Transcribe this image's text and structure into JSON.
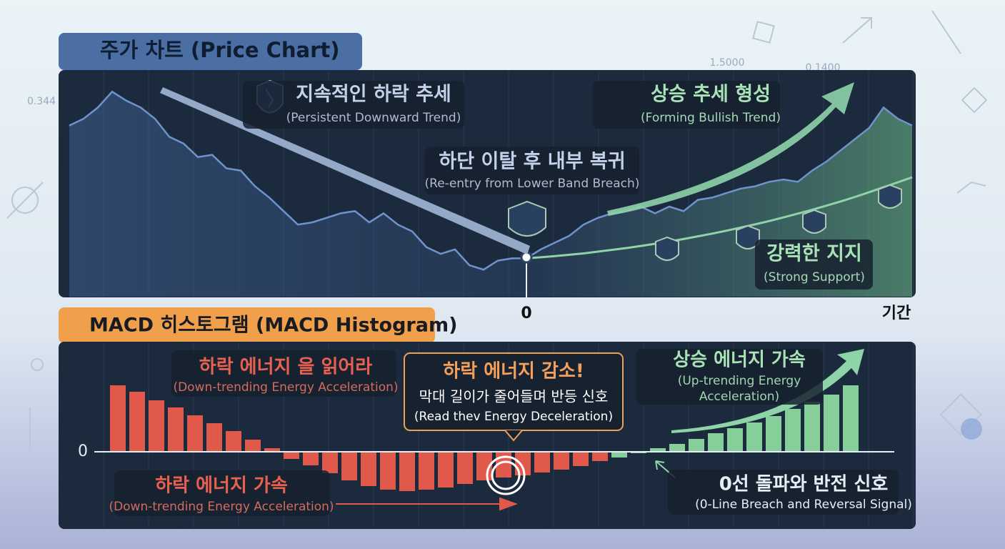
{
  "background_labels": [
    "0.344",
    "1.5000",
    "0.1400"
  ],
  "chart_data": [
    {
      "type": "line",
      "title": "주가 차트 (Price Chart)",
      "x": [
        -32,
        -31,
        -30,
        -29,
        -28,
        -27,
        -26,
        -25,
        -24,
        -23,
        -22,
        -21,
        -20,
        -19,
        -18,
        -17,
        -16,
        -15,
        -14,
        -13,
        -12,
        -11,
        -10,
        -9,
        -8,
        -7,
        -6,
        -5,
        -4,
        -3,
        -2,
        -1,
        0,
        1,
        2,
        3,
        4,
        5,
        6,
        7,
        8,
        9,
        10,
        11,
        12,
        13,
        14,
        15,
        16,
        17,
        18,
        19,
        20,
        21,
        22,
        23,
        24,
        25,
        26,
        27
      ],
      "xlim": [
        -32,
        27
      ],
      "xticks": [
        0
      ],
      "x_end_label": "기간",
      "ylim": [
        0,
        100
      ],
      "series": [
        {
          "color": "#6f93cc",
          "values": [
            76,
            79,
            84,
            91,
            87,
            84,
            79,
            71,
            68,
            62,
            63,
            57,
            56,
            49,
            44,
            38,
            32,
            33,
            35,
            37,
            38,
            33,
            37,
            32,
            29,
            22,
            19,
            21,
            14,
            12,
            16,
            17,
            17,
            21,
            24,
            27,
            32,
            35,
            37,
            38,
            40,
            37,
            40,
            38,
            43,
            44,
            46,
            48,
            49,
            51,
            52,
            51,
            56,
            60,
            65,
            70,
            75,
            84,
            79,
            76
          ]
        },
        {
          "color": "#8fd3a9",
          "values": [
            null,
            null,
            null,
            null,
            null,
            null,
            null,
            null,
            null,
            null,
            null,
            null,
            null,
            null,
            null,
            null,
            null,
            null,
            null,
            null,
            null,
            null,
            null,
            null,
            null,
            null,
            null,
            null,
            null,
            null,
            null,
            null,
            17,
            17.5,
            18,
            18.6,
            19.2,
            20,
            20.8,
            21.6,
            22.5,
            23.5,
            24.5,
            25.6,
            26.8,
            28,
            29.3,
            30.7,
            32.1,
            33.6,
            35.2,
            36.9,
            38.6,
            40.4,
            42.3,
            44.3,
            46.4,
            48.6,
            50.8,
            53
          ]
        }
      ],
      "annotations": [
        {
          "lines": [
            "지속적인 하락 추세",
            "(Persistent Downward Trend)"
          ]
        },
        {
          "lines": [
            "하단 이탈 후 내부 복귀",
            "(Re-entry from Lower Band Breach)"
          ]
        },
        {
          "lines": [
            "상승 추세 형성",
            "(Forming Bullish Trend)"
          ]
        },
        {
          "lines": [
            "강력한 지지",
            "(Strong Support)"
          ]
        }
      ]
    },
    {
      "type": "bar",
      "title": "MACD 히스토그램 (MACD Histogram)",
      "values": [
        9.3,
        8.4,
        7.2,
        6.2,
        5.1,
        4.0,
        2.9,
        1.7,
        0.5,
        -1.0,
        -1.9,
        -3.0,
        -4.0,
        -4.8,
        -5.3,
        -5.5,
        -5.3,
        -5.0,
        -4.5,
        -4.0,
        -3.6,
        -3.3,
        -2.9,
        -2.5,
        -2.0,
        -1.3,
        -0.8,
        -0.2,
        0.5,
        1.1,
        1.8,
        2.6,
        3.3,
        4.1,
        5.0,
        6.0,
        7.0,
        8.0,
        9.3
      ],
      "colors": [
        "#e0594b",
        "#e0594b",
        "#e0594b",
        "#e0594b",
        "#e0594b",
        "#e0594b",
        "#e0594b",
        "#e0594b",
        "#e0594b",
        "#e0594b",
        "#e0594b",
        "#e0594b",
        "#e0594b",
        "#e0594b",
        "#e0594b",
        "#e0594b",
        "#e0594b",
        "#e0594b",
        "#e0594b",
        "#e0594b",
        "#e0594b",
        "#e0594b",
        "#e0594b",
        "#e0594b",
        "#e0594b",
        "#e0594b",
        "#86cf9b",
        "#86cf9b",
        "#86cf9b",
        "#86cf9b",
        "#86cf9b",
        "#86cf9b",
        "#86cf9b",
        "#86cf9b",
        "#86cf9b",
        "#86cf9b",
        "#86cf9b",
        "#86cf9b",
        "#86cf9b"
      ],
      "ylim": [
        -10.6,
        15.2
      ],
      "yticks": [
        0
      ],
      "annotations": [
        {
          "lines": [
            "하락 에너지 을 읽어라",
            "(Down-trending Energy Acceleration)"
          ]
        },
        {
          "lines": [
            "하락 에너지 감소!",
            "막대 길이가 줄어들며 반등 신호",
            "(Read thev Energy Deceleration)"
          ]
        },
        {
          "lines": [
            "상승 에너지 가속",
            "(Up-trending Energy",
            "Acceleration)"
          ]
        },
        {
          "lines": [
            "하락 에너지 가속",
            "(Down-trending Energy Acceleration)"
          ]
        },
        {
          "lines": [
            "0선 돌파와 반전 신호",
            "(0-Line Breach and Reversal Signal)"
          ]
        }
      ]
    }
  ]
}
